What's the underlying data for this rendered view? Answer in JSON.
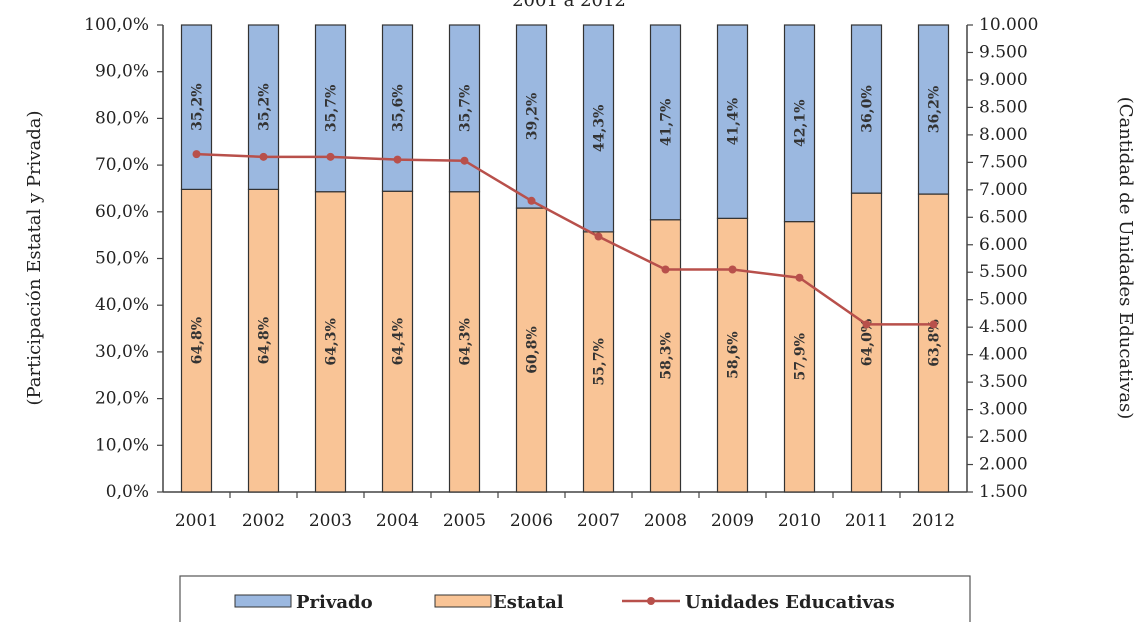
{
  "chart_data": {
    "type": "bar",
    "title_partial": "2001 a 2012",
    "categories": [
      "2001",
      "2002",
      "2003",
      "2004",
      "2005",
      "2006",
      "2007",
      "2008",
      "2009",
      "2010",
      "2011",
      "2012"
    ],
    "series": [
      {
        "name": "Estatal",
        "kind": "bar",
        "axis": "left",
        "color": "#f9c496",
        "values": [
          64.8,
          64.8,
          64.3,
          64.4,
          64.3,
          60.8,
          55.7,
          58.3,
          58.6,
          57.9,
          64.0,
          63.8
        ],
        "labels": [
          "64,8%",
          "64,8%",
          "64,3%",
          "64,4%",
          "64,3%",
          "60,8%",
          "55,7%",
          "58,3%",
          "58,6%",
          "57,9%",
          "64,0%",
          "63,8%"
        ]
      },
      {
        "name": "Privado",
        "kind": "bar",
        "axis": "left",
        "color": "#9bb8e0",
        "values": [
          35.2,
          35.2,
          35.7,
          35.6,
          35.7,
          39.2,
          44.3,
          41.7,
          41.4,
          42.1,
          36.0,
          36.2
        ],
        "labels": [
          "35,2%",
          "35,2%",
          "35,7%",
          "35,6%",
          "35,7%",
          "39,2%",
          "44,3%",
          "41,7%",
          "41,4%",
          "42,1%",
          "36,0%",
          "36,2%"
        ]
      },
      {
        "name": "Unidades Educativas",
        "kind": "line",
        "axis": "right",
        "color": "#b8504b",
        "values": [
          7650,
          7600,
          7600,
          7550,
          7530,
          6800,
          6150,
          5550,
          5550,
          5400,
          4550,
          4550
        ]
      }
    ],
    "ylabel_left": "(Participación Estatal y Privada)",
    "ylabel_right": "(Cantidad de Unidades Educativas)",
    "ylim_left": [
      0,
      100
    ],
    "ylim_right": [
      1500,
      10000
    ],
    "left_ticks": [
      "0,0%",
      "10,0%",
      "20,0%",
      "30,0%",
      "40,0%",
      "50,0%",
      "60,0%",
      "70,0%",
      "80,0%",
      "90,0%",
      "100,0%"
    ],
    "right_ticks": [
      "1.500",
      "2.000",
      "2.500",
      "3.000",
      "3.500",
      "4.000",
      "4.500",
      "5.000",
      "5.500",
      "6.000",
      "6.500",
      "7.000",
      "7.500",
      "8.000",
      "8.500",
      "9.000",
      "9.500",
      "10.000"
    ],
    "legend_position": "bottom",
    "legend": [
      "Privado",
      "Estatal",
      "Unidades Educativas"
    ],
    "stacked": true,
    "grid": false
  }
}
